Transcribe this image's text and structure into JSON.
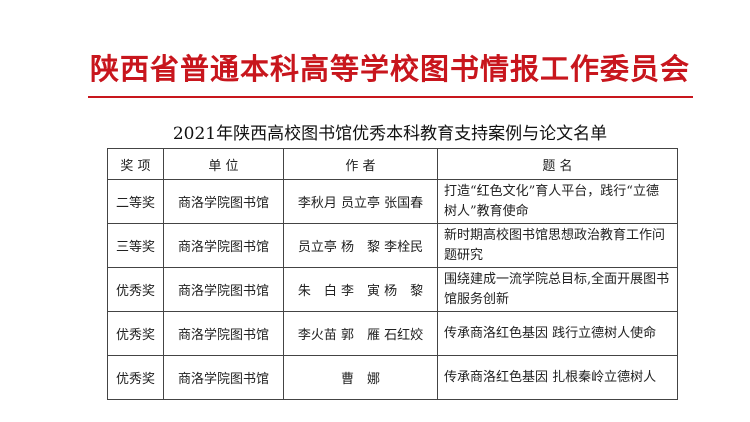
{
  "org_title": "陕西省普通本科高等学校图书情报工作委员会",
  "subtitle": "2021年陕西高校图书馆优秀本科教育支持案例与论文名单",
  "colors": {
    "brand_red": "#c8161d"
  },
  "table": {
    "headers": [
      "奖  项",
      "单  位",
      "作  者",
      "题  名"
    ],
    "rows": [
      {
        "award": "二等奖",
        "unit": "商洛学院图书馆",
        "authors": "李秋月 员立亭 张国春",
        "title": "打造“红色文化”育人平台，践行“立德树人”教育使命"
      },
      {
        "award": "三等奖",
        "unit": "商洛学院图书馆",
        "authors": "员立亭 杨　黎 李栓民",
        "title": "新时期高校图书馆思想政治教育工作问题研究"
      },
      {
        "award": "优秀奖",
        "unit": "商洛学院图书馆",
        "authors": "朱　白 李　寅 杨　黎",
        "title": "围绕建成一流学院总目标,全面开展图书馆服务创新"
      },
      {
        "award": "优秀奖",
        "unit": "商洛学院图书馆",
        "authors": "李火苗 郭　雁 石红姣",
        "title": "传承商洛红色基因 践行立德树人使命"
      },
      {
        "award": "优秀奖",
        "unit": "商洛学院图书馆",
        "authors": "曹　娜",
        "title": "传承商洛红色基因 扎根秦岭立德树人"
      }
    ]
  }
}
